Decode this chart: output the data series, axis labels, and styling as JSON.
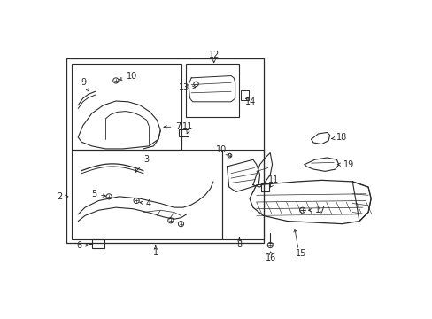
{
  "bg_color": "#ffffff",
  "lc": "#2a2a2a",
  "fs": 7.0,
  "fig_w": 4.89,
  "fig_h": 3.6,
  "dpi": 100
}
